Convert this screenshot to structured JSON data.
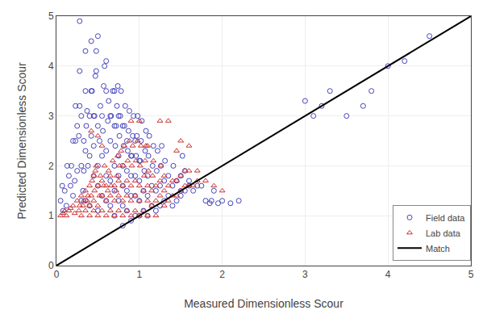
{
  "chart_data": {
    "type": "scatter",
    "xlabel": "Measured Dimensionless Scour",
    "ylabel": "Predicted Dimensionless Scour",
    "xlim": [
      0,
      5
    ],
    "ylim": [
      0,
      5
    ],
    "xticks": [
      0,
      1,
      2,
      3,
      4,
      5
    ],
    "yticks": [
      0,
      1,
      2,
      3,
      4,
      5
    ],
    "grid": true,
    "legend": "lower right",
    "series": [
      {
        "name": "Field data",
        "type": "scatter",
        "color": "#4444bb",
        "marker": "circle-open",
        "x": [
          0.05,
          0.07,
          0.08,
          0.1,
          0.12,
          0.13,
          0.15,
          0.17,
          0.18,
          0.2,
          0.2,
          0.22,
          0.23,
          0.23,
          0.25,
          0.25,
          0.27,
          0.28,
          0.28,
          0.28,
          0.3,
          0.3,
          0.3,
          0.32,
          0.33,
          0.33,
          0.35,
          0.35,
          0.35,
          0.35,
          0.36,
          0.37,
          0.38,
          0.4,
          0.4,
          0.4,
          0.42,
          0.42,
          0.42,
          0.43,
          0.45,
          0.45,
          0.45,
          0.46,
          0.47,
          0.48,
          0.48,
          0.5,
          0.5,
          0.5,
          0.5,
          0.5,
          0.52,
          0.53,
          0.55,
          0.55,
          0.55,
          0.56,
          0.57,
          0.58,
          0.6,
          0.6,
          0.6,
          0.6,
          0.6,
          0.62,
          0.63,
          0.65,
          0.65,
          0.65,
          0.65,
          0.66,
          0.68,
          0.7,
          0.7,
          0.7,
          0.7,
          0.7,
          0.71,
          0.72,
          0.73,
          0.74,
          0.75,
          0.75,
          0.75,
          0.75,
          0.76,
          0.77,
          0.78,
          0.8,
          0.8,
          0.8,
          0.8,
          0.8,
          0.81,
          0.82,
          0.83,
          0.85,
          0.85,
          0.85,
          0.85,
          0.86,
          0.87,
          0.88,
          0.9,
          0.9,
          0.9,
          0.9,
          0.91,
          0.92,
          0.93,
          0.95,
          0.95,
          0.95,
          0.95,
          0.96,
          0.97,
          0.98,
          1.0,
          1.0,
          1.0,
          1.0,
          1.01,
          1.02,
          1.03,
          1.05,
          1.05,
          1.06,
          1.07,
          1.08,
          1.1,
          1.1,
          1.1,
          1.11,
          1.12,
          1.15,
          1.15,
          1.16,
          1.17,
          1.2,
          1.2,
          1.21,
          1.22,
          1.25,
          1.25,
          1.26,
          1.27,
          1.3,
          1.3,
          1.31,
          1.35,
          1.35,
          1.4,
          1.4,
          1.41,
          1.45,
          1.45,
          1.5,
          1.5,
          1.5,
          1.52,
          1.55,
          1.55,
          1.6,
          1.6,
          1.65,
          1.7,
          1.75,
          1.8,
          1.85,
          1.87,
          1.9,
          1.95,
          2.0,
          2.1,
          2.2,
          3.0,
          3.1,
          3.2,
          3.3,
          3.5,
          3.7,
          3.8,
          4.0,
          4.2,
          4.5
        ],
        "values": [
          1.3,
          1.6,
          1.1,
          1.5,
          1.2,
          2.0,
          1.8,
          1.6,
          2.0,
          1.4,
          2.5,
          1.7,
          2.5,
          3.2,
          1.9,
          2.8,
          2.6,
          3.2,
          3.9,
          4.9,
          1.3,
          2.0,
          3.0,
          1.5,
          1.9,
          2.5,
          1.3,
          2.3,
          3.5,
          4.3,
          2.8,
          3.1,
          2.0,
          1.2,
          2.2,
          3.0,
          2.6,
          3.5,
          4.5,
          3.5,
          1.8,
          2.4,
          3.0,
          3.0,
          3.8,
          3.9,
          4.3,
          1.1,
          1.6,
          2.0,
          2.8,
          4.6,
          2.5,
          3.2,
          1.4,
          2.2,
          3.0,
          2.7,
          3.6,
          4.0,
          1.3,
          1.8,
          2.3,
          3.5,
          4.1,
          2.9,
          3.3,
          1.2,
          1.7,
          2.5,
          3.0,
          3.0,
          3.5,
          1.0,
          1.5,
          2.0,
          2.8,
          3.5,
          2.4,
          2.8,
          3.2,
          3.6,
          1.3,
          1.8,
          2.2,
          3.0,
          2.6,
          3.0,
          3.5,
          0.8,
          1.2,
          1.6,
          2.0,
          2.8,
          2.4,
          2.8,
          3.2,
          1.1,
          1.5,
          1.9,
          2.5,
          2.3,
          2.7,
          3.1,
          0.9,
          1.4,
          1.8,
          2.2,
          2.2,
          2.6,
          3.0,
          1.0,
          1.4,
          1.8,
          2.5,
          2.2,
          2.6,
          3.0,
          1.0,
          1.3,
          1.7,
          2.1,
          2.1,
          2.5,
          2.9,
          1.1,
          1.5,
          1.9,
          2.3,
          2.7,
          1.0,
          1.4,
          1.8,
          2.2,
          2.6,
          1.2,
          1.6,
          2.0,
          2.4,
          1.1,
          1.5,
          1.9,
          2.3,
          1.2,
          1.6,
          2.0,
          2.4,
          1.3,
          1.7,
          2.1,
          1.4,
          1.8,
          1.2,
          1.6,
          2.0,
          1.3,
          1.7,
          1.4,
          1.5,
          1.8,
          2.2,
          1.5,
          1.9,
          1.6,
          1.7,
          1.5,
          1.6,
          1.6,
          1.3,
          1.25,
          1.3,
          1.5,
          1.25,
          1.3,
          1.25,
          1.3,
          3.3,
          3.0,
          3.2,
          3.5,
          3.0,
          3.2,
          3.5,
          4.0,
          4.1,
          4.6
        ]
      },
      {
        "name": "Lab data",
        "type": "scatter",
        "color": "#cc3333",
        "marker": "triangle-up-open",
        "x": [
          0.05,
          0.08,
          0.1,
          0.12,
          0.15,
          0.17,
          0.2,
          0.22,
          0.25,
          0.27,
          0.28,
          0.3,
          0.3,
          0.32,
          0.33,
          0.35,
          0.35,
          0.37,
          0.38,
          0.4,
          0.4,
          0.4,
          0.42,
          0.42,
          0.43,
          0.45,
          0.45,
          0.45,
          0.46,
          0.47,
          0.48,
          0.5,
          0.5,
          0.5,
          0.5,
          0.52,
          0.53,
          0.55,
          0.55,
          0.55,
          0.55,
          0.57,
          0.58,
          0.6,
          0.6,
          0.6,
          0.62,
          0.63,
          0.65,
          0.65,
          0.65,
          0.66,
          0.68,
          0.7,
          0.7,
          0.7,
          0.72,
          0.73,
          0.74,
          0.75,
          0.75,
          0.75,
          0.76,
          0.78,
          0.8,
          0.8,
          0.8,
          0.81,
          0.82,
          0.85,
          0.85,
          0.85,
          0.86,
          0.88,
          0.9,
          0.9,
          0.9,
          0.9,
          0.91,
          0.92,
          0.95,
          0.95,
          0.95,
          0.96,
          0.98,
          1.0,
          1.0,
          1.0,
          1.0,
          1.01,
          1.02,
          1.05,
          1.05,
          1.06,
          1.07,
          1.08,
          1.1,
          1.1,
          1.1,
          1.1,
          1.11,
          1.15,
          1.15,
          1.16,
          1.17,
          1.2,
          1.2,
          1.2,
          1.25,
          1.25,
          1.26,
          1.3,
          1.3,
          1.3,
          1.35,
          1.35,
          1.4,
          1.4,
          1.45,
          1.45,
          1.45,
          1.5,
          1.5,
          1.55,
          1.55,
          1.6,
          1.6,
          1.65,
          1.7,
          1.25,
          1.35,
          1.5,
          1.6,
          1.7,
          1.8,
          1.9,
          2.0
        ],
        "values": [
          1.0,
          1.05,
          1.1,
          1.0,
          1.1,
          1.15,
          1.2,
          1.05,
          1.3,
          1.1,
          1.2,
          1.0,
          1.4,
          1.2,
          1.3,
          1.1,
          1.5,
          1.3,
          1.4,
          1.0,
          1.2,
          1.6,
          1.4,
          2.7,
          1.7,
          1.1,
          1.3,
          1.8,
          1.5,
          1.9,
          2.0,
          1.0,
          1.2,
          1.6,
          2.6,
          1.4,
          1.8,
          1.1,
          1.4,
          1.7,
          2.4,
          1.6,
          2.0,
          1.0,
          1.3,
          1.6,
          1.5,
          1.9,
          1.1,
          1.4,
          1.8,
          1.6,
          2.1,
          1.0,
          1.3,
          1.6,
          1.5,
          1.8,
          2.2,
          1.1,
          1.4,
          1.7,
          2.0,
          2.3,
          1.0,
          1.3,
          1.6,
          2.0,
          2.4,
          1.1,
          1.4,
          1.7,
          2.1,
          2.5,
          1.0,
          1.3,
          1.6,
          2.9,
          2.0,
          2.4,
          1.1,
          1.4,
          1.7,
          2.1,
          2.5,
          1.0,
          1.3,
          1.6,
          2.9,
          2.0,
          2.4,
          1.1,
          1.5,
          1.8,
          2.1,
          2.4,
          1.0,
          1.3,
          1.6,
          2.4,
          1.9,
          1.2,
          1.5,
          1.8,
          2.1,
          1.0,
          1.3,
          1.6,
          1.4,
          1.7,
          2.0,
          1.2,
          1.5,
          1.8,
          1.3,
          1.6,
          1.4,
          1.7,
          1.4,
          1.7,
          2.3,
          1.5,
          1.8,
          1.6,
          1.9,
          1.6,
          1.9,
          1.6,
          1.7,
          2.9,
          2.9,
          2.5,
          2.4,
          1.9,
          1.7,
          1.6,
          1.5
        ]
      },
      {
        "name": "Match",
        "type": "line",
        "color": "#000000",
        "x": [
          0,
          5
        ],
        "values": [
          0,
          5
        ]
      }
    ]
  }
}
